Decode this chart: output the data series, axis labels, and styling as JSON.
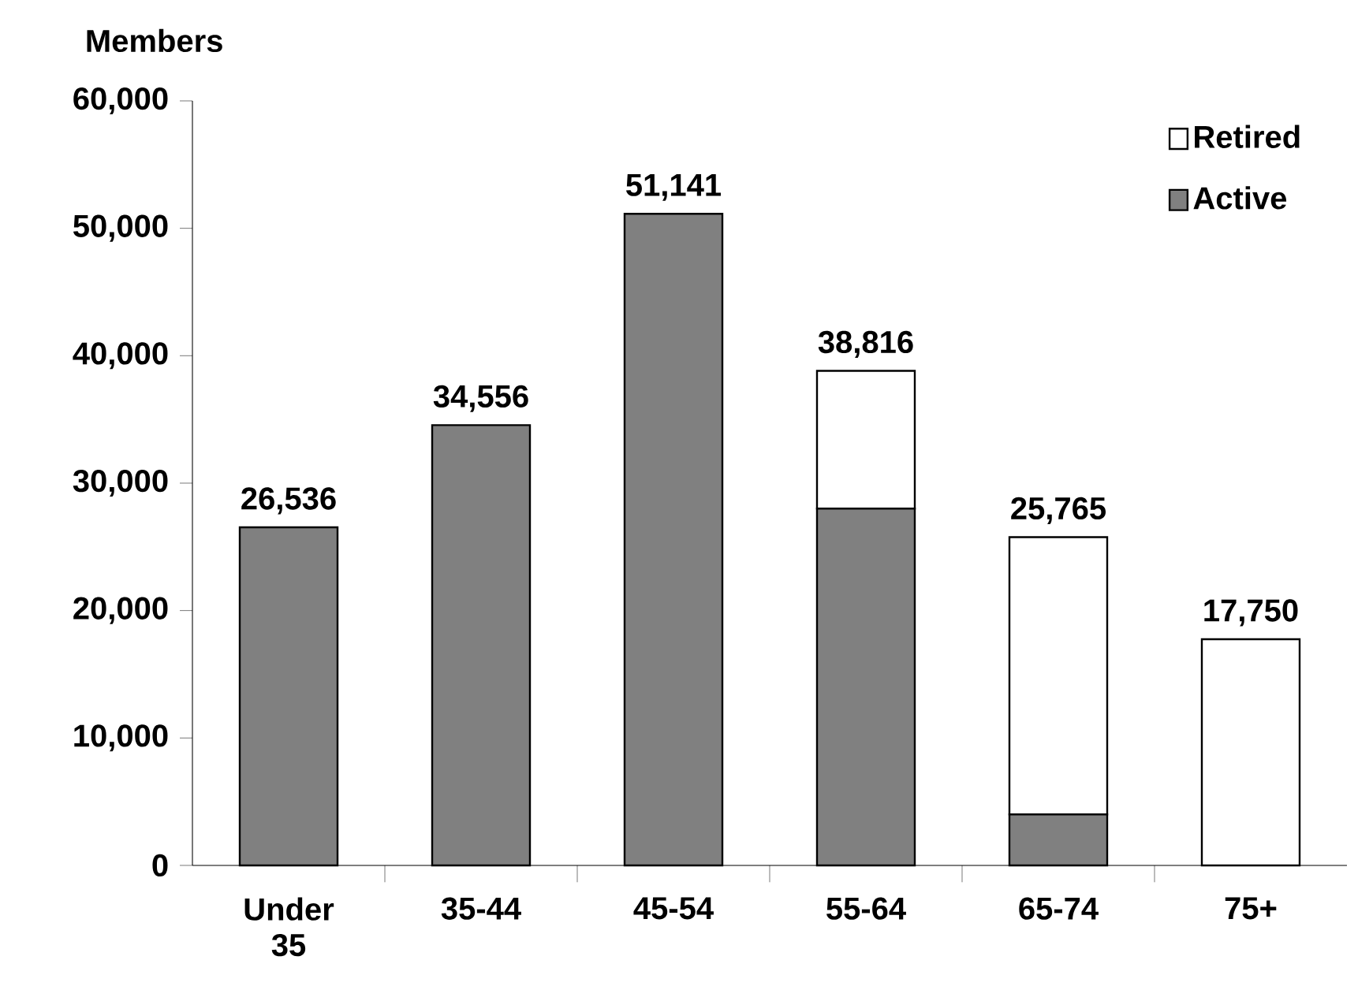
{
  "chart_data": {
    "type": "bar",
    "stacked": true,
    "ylabel": "Members",
    "categories": [
      "Under 35",
      "35-44",
      "45-54",
      "55-64",
      "65-74",
      "75+"
    ],
    "series": [
      {
        "name": "Active",
        "color": "#808080",
        "values": [
          26536,
          34556,
          51141,
          28000,
          4000,
          0
        ]
      },
      {
        "name": "Retired",
        "color": "#ffffff",
        "values": [
          0,
          0,
          0,
          10816,
          21765,
          17750
        ]
      }
    ],
    "totals": [
      "26,536",
      "34,556",
      "51,141",
      "38,816",
      "25,765",
      "17,750"
    ],
    "ylim": [
      0,
      60000
    ],
    "yticks": [
      {
        "value": 0,
        "label": "0"
      },
      {
        "value": 10000,
        "label": "10,000"
      },
      {
        "value": 20000,
        "label": "20,000"
      },
      {
        "value": 30000,
        "label": "30,000"
      },
      {
        "value": 40000,
        "label": "40,000"
      },
      {
        "value": 50000,
        "label": "50,000"
      },
      {
        "value": 60000,
        "label": "60,000"
      }
    ],
    "grid": false,
    "legend": "top right"
  }
}
